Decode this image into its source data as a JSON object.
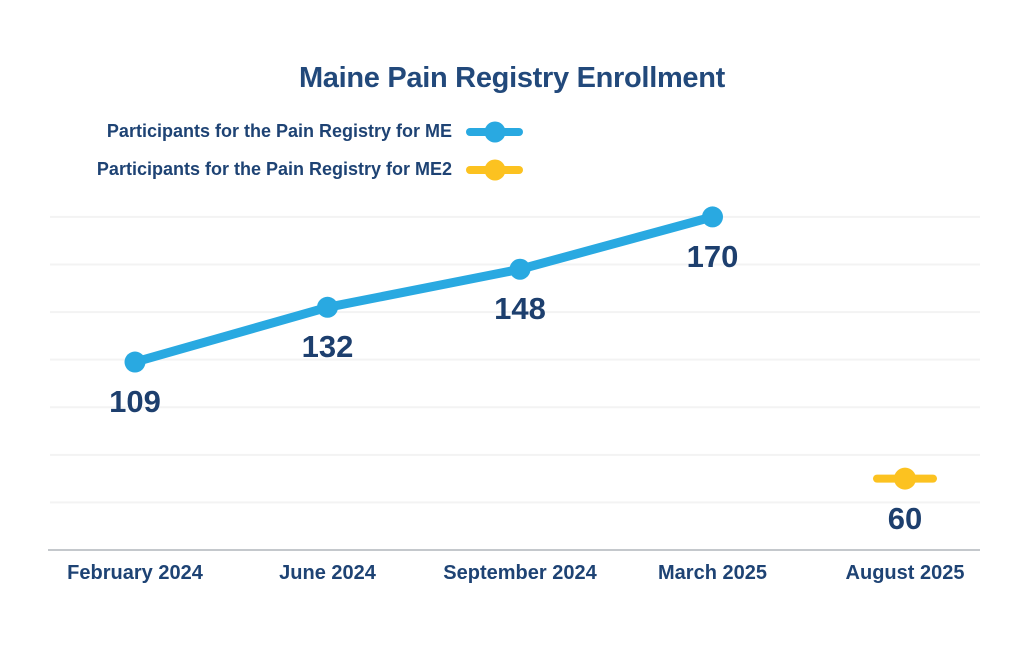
{
  "chart": {
    "title": "Maine Pain Registry Enrollment"
  },
  "legend": {
    "items": [
      {
        "label": "Participants for the Pain Registry for ME",
        "series": "ME",
        "color": "#29A9E1"
      },
      {
        "label": "Participants for the Pain Registry for ME2",
        "series": "ME2",
        "color": "#FCC220"
      }
    ]
  },
  "chart_data": {
    "type": "line",
    "title": "Maine Pain Registry Enrollment",
    "categories": [
      "February 2024",
      "June 2024",
      "September 2024",
      "March 2025",
      "August 2025"
    ],
    "series": [
      {
        "name": "Participants for the Pain Registry for ME",
        "color": "#29A9E1",
        "values": [
          109,
          132,
          148,
          170,
          null
        ]
      },
      {
        "name": "Participants for the Pain Registry for ME2",
        "color": "#FCC220",
        "values": [
          null,
          null,
          null,
          null,
          60
        ]
      }
    ],
    "data_labels": true,
    "xlabel": "",
    "ylabel": "",
    "ylim": [
      30,
      175
    ],
    "grid": "horizontal-only",
    "gridline_values": [
      50,
      70,
      90,
      110,
      130,
      150,
      170
    ],
    "legend_position": "top-left"
  },
  "colors": {
    "navy_text": "#1E4374",
    "title_navy": "#22497B",
    "data_label_navy": "#1D3F6E",
    "series_me": "#29A9E1",
    "series_me2": "#FCC220",
    "gridline": "#F3F3F3",
    "axis_line": "#C4C8CC",
    "background": "#FFFFFF"
  }
}
